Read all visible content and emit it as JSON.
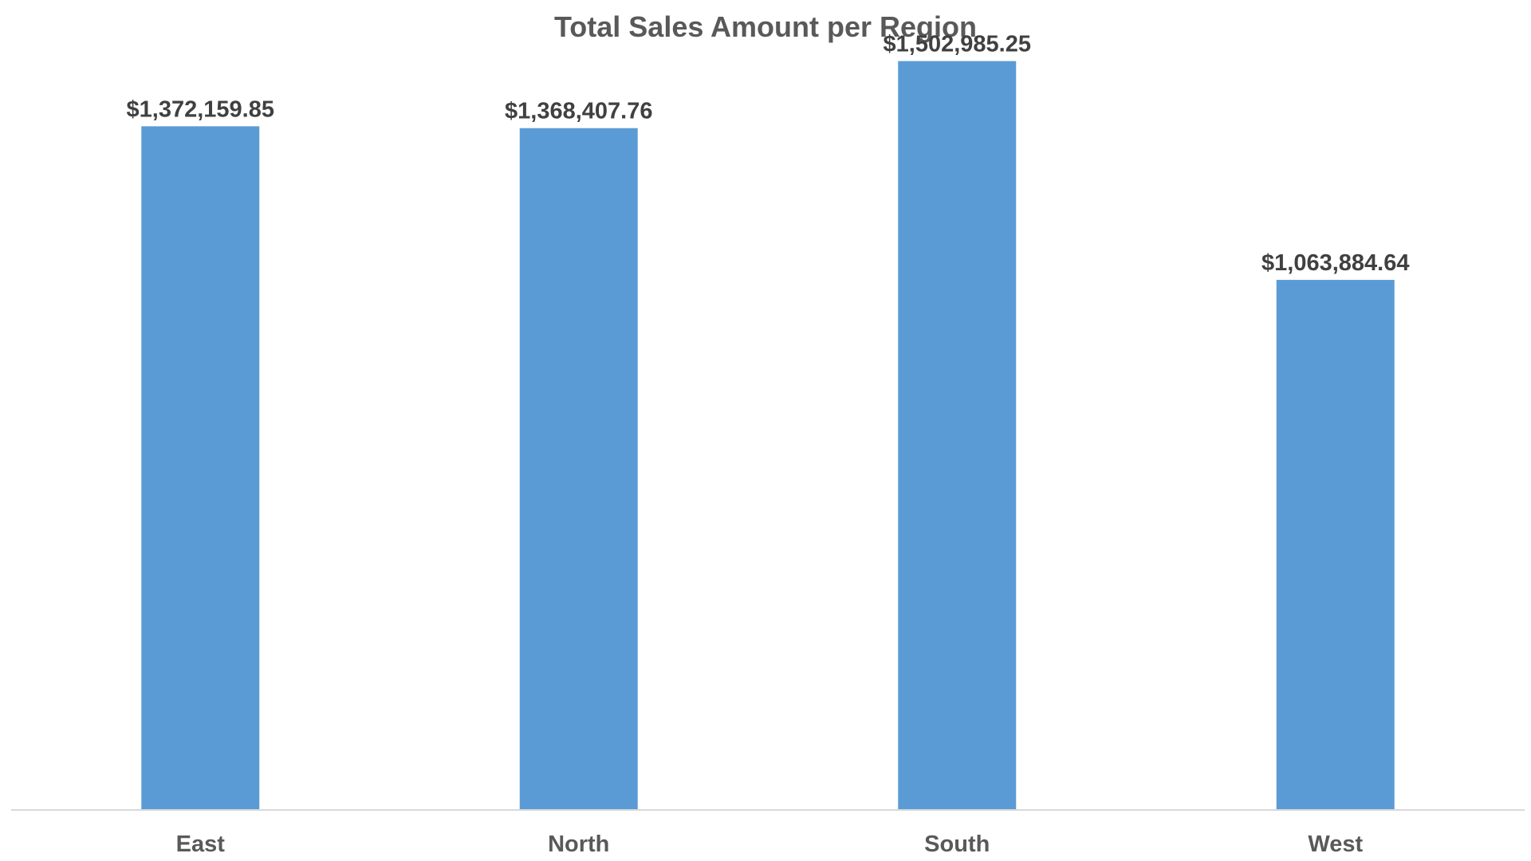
{
  "chart_data": {
    "type": "bar",
    "title": "Total Sales Amount per Region",
    "xlabel": "",
    "ylabel": "",
    "categories": [
      "East",
      "North",
      "South",
      "West"
    ],
    "values": [
      1372159.85,
      1368407.76,
      1502985.25,
      1063884.64
    ],
    "data_labels": [
      "$1,372,159.85",
      "$1,368,407.76",
      "$1,502,985.25",
      "$1,063,884.64"
    ],
    "ylim": [
      0,
      1600000
    ],
    "grid": false,
    "legend": "none",
    "bar_color": "#5B9BD5",
    "axis_color": "#D9D9D9"
  }
}
